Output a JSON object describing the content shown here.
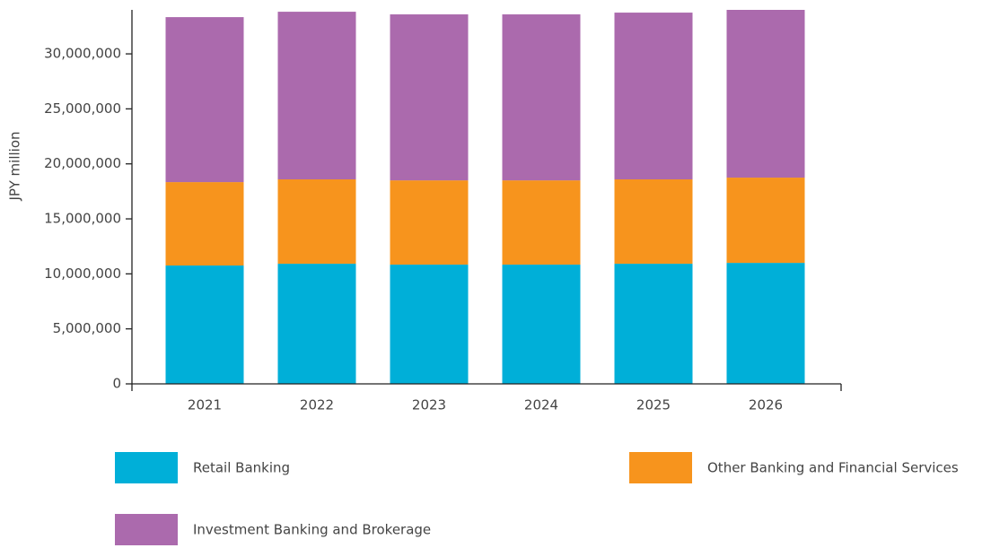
{
  "chart_data": {
    "type": "stacked_bar",
    "y_label": "JPY million",
    "categories": [
      "2021",
      "2022",
      "2023",
      "2024",
      "2025",
      "2026"
    ],
    "series": [
      {
        "name": "Retail Banking",
        "color": "#00afd8",
        "values": [
          10760000,
          10920000,
          10840000,
          10840000,
          10920000,
          11000000
        ]
      },
      {
        "name": "Other Banking and Financial Services",
        "color": "#f7941d",
        "values": [
          7580000,
          7670000,
          7660000,
          7660000,
          7670000,
          7750000
        ]
      },
      {
        "name": "Investment Banking and Brokerage",
        "color": "#ab6aad",
        "values": [
          15000000,
          15240000,
          15090000,
          15090000,
          15160000,
          15250000
        ]
      }
    ],
    "ylim": [
      0,
      34000000
    ],
    "yticks": [
      0,
      {
        "value": 5000000,
        "label": "5,000,000"
      },
      {
        "value": 10000000,
        "label": "10,000,000"
      },
      {
        "value": 15000000,
        "label": "15,000,000"
      },
      {
        "value": 20000000,
        "label": "20,000,000"
      },
      {
        "value": 25000000,
        "label": "25,000,000"
      },
      {
        "value": 30000000,
        "label": "30,000,000"
      }
    ]
  }
}
